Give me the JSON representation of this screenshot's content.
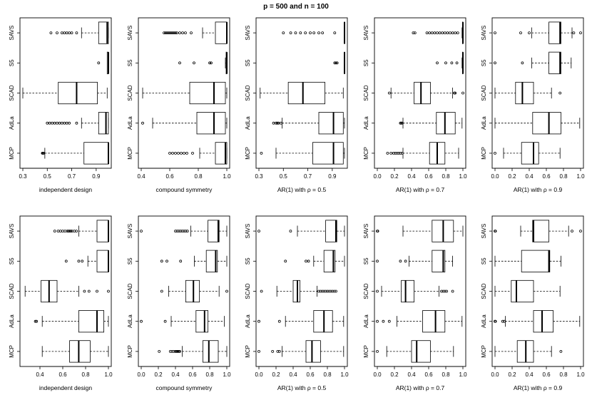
{
  "title": "p =  500  and n =  100",
  "method_labels": [
    "SAVS",
    "S5",
    "SCAD",
    "AdLa",
    "MCP"
  ],
  "colors": {
    "ink": "#000000",
    "background": "#ffffff"
  },
  "chart_data": [
    {
      "type": "boxplot",
      "orientation": "horizontal",
      "xlabel": "independent design",
      "xlim": [
        0.3,
        1.0
      ],
      "ticks": [
        0.3,
        0.5,
        0.7,
        0.9
      ],
      "tick_labels": [
        "0.3",
        "0.5",
        "0.7",
        "0.9"
      ],
      "series": [
        {
          "name": "SAVS",
          "q1": 0.92,
          "median": 0.99,
          "q3": 1.0,
          "wmin": 0.78,
          "wmax": 1.0,
          "outliers": [
            0.53,
            0.58,
            0.62,
            0.64,
            0.66,
            0.68,
            0.7,
            0.74
          ]
        },
        {
          "name": "S5",
          "q1": 0.99,
          "median": 1.0,
          "q3": 1.0,
          "wmin": 0.995,
          "wmax": 1.0,
          "outliers": [
            0.92
          ]
        },
        {
          "name": "SCAD",
          "q1": 0.59,
          "median": 0.74,
          "q3": 0.91,
          "wmin": 0.3,
          "wmax": 0.99,
          "outliers": []
        },
        {
          "name": "AdLa",
          "q1": 0.92,
          "median": 0.98,
          "q3": 1.0,
          "wmin": 0.78,
          "wmax": 1.0,
          "outliers": [
            0.5,
            0.52,
            0.54,
            0.56,
            0.58,
            0.6,
            0.62,
            0.64,
            0.66,
            0.68,
            0.74
          ]
        },
        {
          "name": "MCP",
          "q1": 0.8,
          "median": 1.0,
          "q3": 1.0,
          "wmin": 0.48,
          "wmax": 1.0,
          "outliers": [
            0.46,
            0.465,
            0.47
          ]
        }
      ]
    },
    {
      "type": "boxplot",
      "orientation": "horizontal",
      "xlabel": "compound symmetry",
      "xlim": [
        0.4,
        1.0
      ],
      "ticks": [
        0.4,
        0.6,
        0.8,
        1.0
      ],
      "tick_labels": [
        "0.4",
        "0.6",
        "0.8",
        "1.0"
      ],
      "series": [
        {
          "name": "SAVS",
          "q1": 0.92,
          "median": 1.0,
          "q3": 1.0,
          "wmin": 0.83,
          "wmax": 1.0,
          "outliers": [
            0.56,
            0.57,
            0.58,
            0.59,
            0.6,
            0.61,
            0.62,
            0.63,
            0.64,
            0.65,
            0.67,
            0.69,
            0.71,
            0.75
          ]
        },
        {
          "name": "S5",
          "q1": 0.995,
          "median": 1.0,
          "q3": 1.0,
          "wmin": 0.99,
          "wmax": 1.0,
          "outliers": [
            0.67,
            0.77,
            0.88,
            0.89
          ]
        },
        {
          "name": "SCAD",
          "q1": 0.74,
          "median": 0.91,
          "q3": 0.99,
          "wmin": 0.41,
          "wmax": 1.0,
          "outliers": []
        },
        {
          "name": "AdLa",
          "q1": 0.79,
          "median": 0.91,
          "q3": 0.99,
          "wmin": 0.48,
          "wmax": 1.0,
          "outliers": [
            0.41
          ]
        },
        {
          "name": "MCP",
          "q1": 0.92,
          "median": 0.99,
          "q3": 1.0,
          "wmin": 0.81,
          "wmax": 1.0,
          "outliers": [
            0.6,
            0.62,
            0.64,
            0.66,
            0.68,
            0.7,
            0.72,
            0.76
          ]
        }
      ]
    },
    {
      "type": "boxplot",
      "orientation": "horizontal",
      "xlabel": "AR(1) with ρ = 0.5",
      "xlim": [
        0.3,
        1.0
      ],
      "ticks": [
        0.3,
        0.5,
        0.7,
        0.9
      ],
      "tick_labels": [
        "0.3",
        "0.5",
        "0.7",
        "0.9"
      ],
      "series": [
        {
          "name": "SAVS",
          "q1": 0.999,
          "median": 1.0,
          "q3": 1.0,
          "wmin": 0.998,
          "wmax": 1.0,
          "outliers": [
            0.5,
            0.56,
            0.6,
            0.64,
            0.68,
            0.72,
            0.75,
            0.79,
            0.82,
            0.92
          ]
        },
        {
          "name": "S5",
          "q1": 0.999,
          "median": 1.0,
          "q3": 1.0,
          "wmin": 0.998,
          "wmax": 1.0,
          "outliers": [
            0.92,
            0.93,
            0.94
          ]
        },
        {
          "name": "SCAD",
          "q1": 0.54,
          "median": 0.66,
          "q3": 0.84,
          "wmin": 0.31,
          "wmax": 0.99,
          "outliers": []
        },
        {
          "name": "AdLa",
          "q1": 0.79,
          "median": 0.91,
          "q3": 0.99,
          "wmin": 0.49,
          "wmax": 1.0,
          "outliers": [
            0.42,
            0.44,
            0.45,
            0.46,
            0.48
          ]
        },
        {
          "name": "MCP",
          "q1": 0.74,
          "median": 0.91,
          "q3": 0.99,
          "wmin": 0.44,
          "wmax": 1.0,
          "outliers": [
            0.32
          ]
        }
      ]
    },
    {
      "type": "boxplot",
      "orientation": "horizontal",
      "xlabel": "AR(1) with ρ = 0.7",
      "xlim": [
        0.0,
        1.0
      ],
      "ticks": [
        0.0,
        0.2,
        0.4,
        0.6,
        0.8,
        1.0
      ],
      "tick_labels": [
        "0.0",
        "0.2",
        "0.4",
        "0.6",
        "0.8",
        "1.0"
      ],
      "series": [
        {
          "name": "SAVS",
          "q1": 0.995,
          "median": 1.0,
          "q3": 1.0,
          "wmin": 0.99,
          "wmax": 1.0,
          "outliers": [
            0.42,
            0.44,
            0.58,
            0.61,
            0.64,
            0.67,
            0.7,
            0.73,
            0.76,
            0.79,
            0.82,
            0.85,
            0.88,
            0.91,
            0.94
          ]
        },
        {
          "name": "S5",
          "q1": 0.995,
          "median": 1.0,
          "q3": 1.0,
          "wmin": 0.99,
          "wmax": 1.0,
          "outliers": [
            0.7,
            0.8,
            0.87,
            0.93
          ]
        },
        {
          "name": "SCAD",
          "q1": 0.43,
          "median": 0.51,
          "q3": 0.62,
          "wmin": 0.16,
          "wmax": 0.88,
          "outliers": [
            0.14,
            0.9,
            0.91,
            1.0
          ]
        },
        {
          "name": "AdLa",
          "q1": 0.69,
          "median": 0.79,
          "q3": 0.91,
          "wmin": 0.3,
          "wmax": 0.99,
          "outliers": [
            0.27,
            0.28,
            0.29
          ]
        },
        {
          "name": "MCP",
          "q1": 0.61,
          "median": 0.7,
          "q3": 0.79,
          "wmin": 0.3,
          "wmax": 0.95,
          "outliers": [
            0.12,
            0.16,
            0.19,
            0.21,
            0.23,
            0.25,
            0.27,
            0.29
          ]
        }
      ]
    },
    {
      "type": "boxplot",
      "orientation": "horizontal",
      "xlabel": "AR(1) with ρ = 0.9",
      "xlim": [
        0.0,
        1.0
      ],
      "ticks": [
        0.0,
        0.2,
        0.4,
        0.6,
        0.8,
        1.0
      ],
      "tick_labels": [
        "0.0",
        "0.2",
        "0.4",
        "0.6",
        "0.8",
        "1.0"
      ],
      "series": [
        {
          "name": "SAVS",
          "q1": 0.63,
          "median": 0.76,
          "q3": 0.77,
          "wmin": 0.43,
          "wmax": 0.9,
          "outliers": [
            0.0,
            0.3,
            0.4,
            0.92,
            1.0
          ]
        },
        {
          "name": "S5",
          "q1": 0.63,
          "median": 0.76,
          "q3": 0.77,
          "wmin": 0.43,
          "wmax": 0.89,
          "outliers": [
            0.0,
            0.32
          ]
        },
        {
          "name": "SCAD",
          "q1": 0.24,
          "median": 0.32,
          "q3": 0.45,
          "wmin": 0.0,
          "wmax": 0.66,
          "outliers": [
            0.76
          ]
        },
        {
          "name": "AdLa",
          "q1": 0.44,
          "median": 0.63,
          "q3": 0.77,
          "wmin": 0.0,
          "wmax": 0.99,
          "outliers": []
        },
        {
          "name": "MCP",
          "q1": 0.31,
          "median": 0.45,
          "q3": 0.51,
          "wmin": 0.1,
          "wmax": 0.76,
          "outliers": [
            0.0
          ]
        }
      ]
    },
    {
      "type": "boxplot",
      "orientation": "horizontal",
      "xlabel": "independent design",
      "xlim": [
        0.25,
        1.0
      ],
      "ticks": [
        0.4,
        0.6,
        0.8,
        1.0
      ],
      "tick_labels": [
        "0.4",
        "0.6",
        "0.8",
        "1.0"
      ],
      "series": [
        {
          "name": "SAVS",
          "q1": 0.9,
          "median": 1.0,
          "q3": 1.0,
          "wmin": 0.74,
          "wmax": 1.0,
          "outliers": [
            0.53,
            0.56,
            0.58,
            0.6,
            0.62,
            0.64,
            0.65,
            0.66,
            0.67,
            0.68,
            0.7,
            0.72
          ]
        },
        {
          "name": "S5",
          "q1": 0.9,
          "median": 1.0,
          "q3": 1.0,
          "wmin": 0.82,
          "wmax": 1.0,
          "outliers": [
            0.63,
            0.74,
            0.77
          ]
        },
        {
          "name": "SCAD",
          "q1": 0.41,
          "median": 0.48,
          "q3": 0.55,
          "wmin": 0.27,
          "wmax": 0.74,
          "outliers": [
            0.79,
            0.83,
            0.9,
            1.0
          ]
        },
        {
          "name": "AdLa",
          "q1": 0.74,
          "median": 0.9,
          "q3": 0.96,
          "wmin": 0.42,
          "wmax": 1.0,
          "outliers": [
            0.36,
            0.37
          ]
        },
        {
          "name": "MCP",
          "q1": 0.66,
          "median": 0.74,
          "q3": 0.84,
          "wmin": 0.42,
          "wmax": 1.0,
          "outliers": []
        }
      ]
    },
    {
      "type": "boxplot",
      "orientation": "horizontal",
      "xlabel": "compound symmetry",
      "xlim": [
        0.0,
        1.0
      ],
      "ticks": [
        0.0,
        0.2,
        0.4,
        0.6,
        0.8,
        1.0
      ],
      "tick_labels": [
        "0.0",
        "0.2",
        "0.4",
        "0.6",
        "0.8",
        "1.0"
      ],
      "series": [
        {
          "name": "SAVS",
          "q1": 0.78,
          "median": 0.9,
          "q3": 0.91,
          "wmin": 0.58,
          "wmax": 1.0,
          "outliers": [
            0.0,
            0.4,
            0.42,
            0.44,
            0.46,
            0.48,
            0.5,
            0.52,
            0.54
          ]
        },
        {
          "name": "S5",
          "q1": 0.76,
          "median": 0.87,
          "q3": 0.89,
          "wmin": 0.62,
          "wmax": 1.0,
          "outliers": [
            0.24,
            0.3,
            0.46
          ]
        },
        {
          "name": "SCAD",
          "q1": 0.52,
          "median": 0.61,
          "q3": 0.68,
          "wmin": 0.32,
          "wmax": 0.91,
          "outliers": [
            0.24,
            1.0
          ]
        },
        {
          "name": "AdLa",
          "q1": 0.64,
          "median": 0.74,
          "q3": 0.78,
          "wmin": 0.35,
          "wmax": 0.97,
          "outliers": [
            0.0,
            0.28
          ]
        },
        {
          "name": "MCP",
          "q1": 0.72,
          "median": 0.79,
          "q3": 0.9,
          "wmin": 0.48,
          "wmax": 1.0,
          "outliers": [
            0.21,
            0.34,
            0.36,
            0.38,
            0.4,
            0.41,
            0.42,
            0.43,
            0.44,
            0.45
          ]
        }
      ]
    },
    {
      "type": "boxplot",
      "orientation": "horizontal",
      "xlabel": "AR(1) with ρ = 0.5",
      "xlim": [
        0.0,
        1.0
      ],
      "ticks": [
        0.0,
        0.2,
        0.4,
        0.6,
        0.8,
        1.0
      ],
      "tick_labels": [
        "0.0",
        "0.2",
        "0.4",
        "0.6",
        "0.8",
        "1.0"
      ],
      "series": [
        {
          "name": "SAVS",
          "q1": 0.78,
          "median": 0.9,
          "q3": 0.91,
          "wmin": 0.45,
          "wmax": 1.0,
          "outliers": [
            0.0,
            0.37
          ]
        },
        {
          "name": "S5",
          "q1": 0.76,
          "median": 0.87,
          "q3": 0.89,
          "wmin": 0.64,
          "wmax": 1.0,
          "outliers": [
            0.31,
            0.55,
            0.58
          ]
        },
        {
          "name": "SCAD",
          "q1": 0.4,
          "median": 0.45,
          "q3": 0.48,
          "wmin": 0.21,
          "wmax": 0.68,
          "outliers": [
            0.03,
            0.7,
            0.72,
            0.74,
            0.76,
            0.78,
            0.8,
            0.82,
            0.84,
            0.86,
            0.88,
            0.9
          ]
        },
        {
          "name": "AdLa",
          "q1": 0.64,
          "median": 0.76,
          "q3": 0.86,
          "wmin": 0.31,
          "wmax": 0.99,
          "outliers": [
            0.0,
            0.24
          ]
        },
        {
          "name": "MCP",
          "q1": 0.55,
          "median": 0.62,
          "q3": 0.72,
          "wmin": 0.27,
          "wmax": 0.99,
          "outliers": [
            0.0,
            0.16,
            0.22,
            0.24
          ]
        }
      ]
    },
    {
      "type": "boxplot",
      "orientation": "horizontal",
      "xlabel": "AR(1) with ρ = 0.7",
      "xlim": [
        0.0,
        1.0
      ],
      "ticks": [
        0.0,
        0.2,
        0.4,
        0.6,
        0.8,
        1.0
      ],
      "tick_labels": [
        "0.0",
        "0.2",
        "0.4",
        "0.6",
        "0.8",
        "1.0"
      ],
      "series": [
        {
          "name": "SAVS",
          "q1": 0.64,
          "median": 0.77,
          "q3": 0.89,
          "wmin": 0.3,
          "wmax": 1.0,
          "outliers": [
            0.0,
            0.005
          ]
        },
        {
          "name": "S5",
          "q1": 0.64,
          "median": 0.77,
          "q3": 0.79,
          "wmin": 0.37,
          "wmax": 0.88,
          "outliers": [
            0.0,
            0.27,
            0.33
          ]
        },
        {
          "name": "SCAD",
          "q1": 0.28,
          "median": 0.33,
          "q3": 0.43,
          "wmin": 0.05,
          "wmax": 0.72,
          "outliers": [
            0.0,
            0.75,
            0.77,
            0.79,
            0.81,
            0.88
          ]
        },
        {
          "name": "AdLa",
          "q1": 0.53,
          "median": 0.68,
          "q3": 0.79,
          "wmin": 0.23,
          "wmax": 0.99,
          "outliers": [
            0.0,
            0.07,
            0.14
          ]
        },
        {
          "name": "MCP",
          "q1": 0.4,
          "median": 0.46,
          "q3": 0.62,
          "wmin": 0.11,
          "wmax": 0.89,
          "outliers": [
            0.0
          ]
        }
      ]
    },
    {
      "type": "boxplot",
      "orientation": "horizontal",
      "xlabel": "AR(1) with ρ = 0.9",
      "xlim": [
        0.0,
        1.0
      ],
      "ticks": [
        0.0,
        0.2,
        0.4,
        0.6,
        0.8,
        1.0
      ],
      "tick_labels": [
        "0.0",
        "0.2",
        "0.4",
        "0.6",
        "0.8",
        "1.0"
      ],
      "series": [
        {
          "name": "SAVS",
          "q1": 0.44,
          "median": 0.45,
          "q3": 0.63,
          "wmin": 0.3,
          "wmax": 0.86,
          "outliers": [
            0.0,
            0.005,
            0.9,
            1.0
          ]
        },
        {
          "name": "S5",
          "q1": 0.31,
          "median": 0.63,
          "q3": 0.64,
          "wmin": 0.0,
          "wmax": 0.77,
          "outliers": []
        },
        {
          "name": "SCAD",
          "q1": 0.19,
          "median": 0.25,
          "q3": 0.45,
          "wmin": 0.0,
          "wmax": 0.76,
          "outliers": []
        },
        {
          "name": "AdLa",
          "q1": 0.45,
          "median": 0.55,
          "q3": 0.68,
          "wmin": 0.12,
          "wmax": 0.99,
          "outliers": [
            0.0,
            0.005,
            0.09,
            0.11
          ]
        },
        {
          "name": "MCP",
          "q1": 0.26,
          "median": 0.36,
          "q3": 0.45,
          "wmin": 0.0,
          "wmax": 0.66,
          "outliers": [
            0.77
          ]
        }
      ]
    }
  ]
}
